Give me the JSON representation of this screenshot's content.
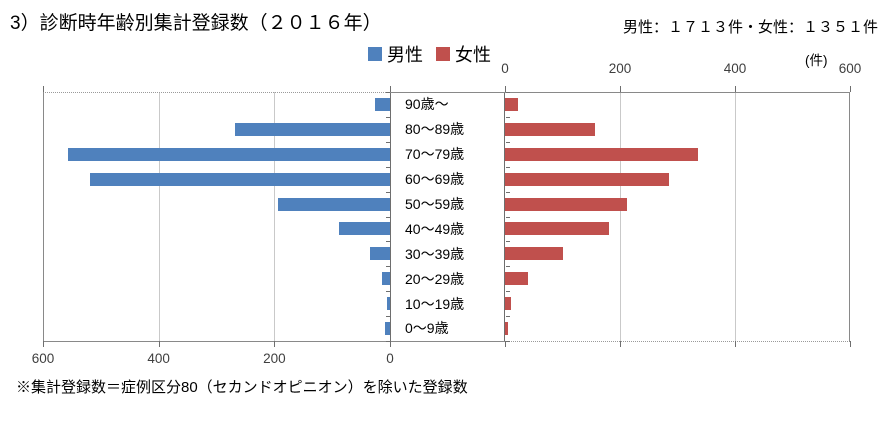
{
  "header": {
    "title": "3）診断時年齢別集計登録数（２０１６年）",
    "totals": "男性：１７１３件・女性：１３５１件"
  },
  "legend": [
    {
      "label": "男性",
      "color": "#4F81BD"
    },
    {
      "label": "女性",
      "color": "#C0504D"
    }
  ],
  "footnote": "※集計登録数＝症例区分80（セカンドオピニオン）を除いた登録数",
  "chart_data": {
    "type": "bar",
    "orientation": "horizontal-pyramid",
    "title": "3）診断時年齢別集計登録数（２０１６年）",
    "unit_label": "(件)",
    "categories": [
      "90歳～",
      "80～89歳",
      "70～79歳",
      "60～69歳",
      "50～59歳",
      "40～49歳",
      "30～39歳",
      "20～29歳",
      "10～19歳",
      "0～9歳"
    ],
    "series": [
      {
        "name": "男性",
        "side": "left",
        "color": "#4F81BD",
        "total": 1713,
        "values": [
          26,
          268,
          557,
          518,
          194,
          89,
          34,
          14,
          5,
          8
        ]
      },
      {
        "name": "女性",
        "side": "right",
        "color": "#C0504D",
        "total": 1351,
        "values": [
          23,
          157,
          335,
          286,
          213,
          180,
          101,
          40,
          11,
          5
        ]
      }
    ],
    "x_axis": {
      "max": 600,
      "left_tick_labels": [
        "600",
        "400",
        "200",
        "0"
      ],
      "right_tick_labels": [
        "0",
        "200",
        "400",
        "600"
      ],
      "gridline_values": [
        200,
        400
      ],
      "gridlines": true,
      "legend_position": "top-center"
    }
  }
}
